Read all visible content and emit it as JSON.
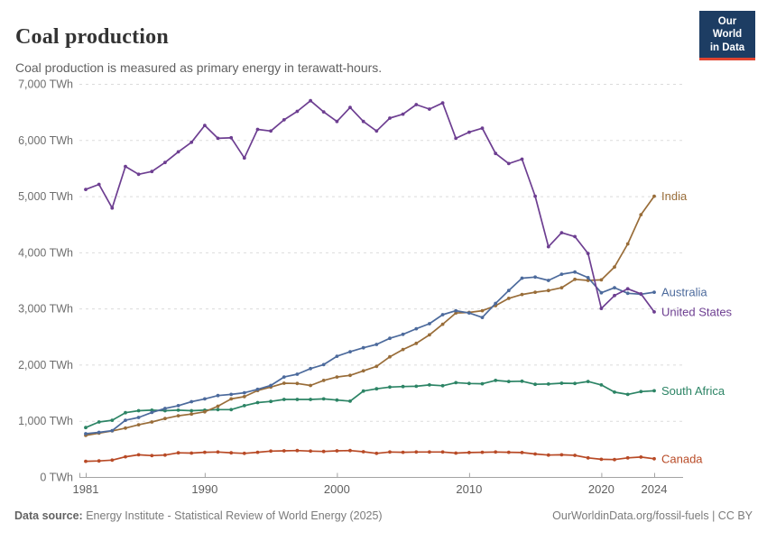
{
  "header": {
    "title": "Coal production",
    "subtitle": "Coal production is measured as primary energy in terawatt-hours."
  },
  "logo": {
    "line1": "Our World",
    "line2": "in Data"
  },
  "footer": {
    "source_label": "Data source:",
    "source_text": " Energy Institute - Statistical Review of World Energy (2025)",
    "url": "OurWorldinData.org/fossil-fuels",
    "separator": " | ",
    "license": "CC BY"
  },
  "colors": {
    "background": "#FFFFFF",
    "title": "#333333",
    "subtitle": "#616161",
    "gridline": "#DBDBDB",
    "axis": "#A3A3A3",
    "y_tick_label": "#6E6E6E",
    "x_tick_label": "#5F5F5F",
    "footer_text": "#7B7B7B",
    "logo_bg": "#1D3D63",
    "logo_accent": "#E04430"
  },
  "chart_data": {
    "type": "line",
    "title": "Coal production",
    "unit": "TWh",
    "ylabel": "",
    "xlabel": "",
    "ylim": [
      0,
      7000
    ],
    "y_ticks": [
      0,
      1000,
      2000,
      3000,
      4000,
      5000,
      6000,
      7000
    ],
    "x_ticks": [
      1981,
      1990,
      2000,
      2010,
      2020,
      2024
    ],
    "grid": true,
    "legend_position": "right-end-labels",
    "x": [
      1981,
      1982,
      1983,
      1984,
      1985,
      1986,
      1987,
      1988,
      1989,
      1990,
      1991,
      1992,
      1993,
      1994,
      1995,
      1996,
      1997,
      1998,
      1999,
      2000,
      2001,
      2002,
      2003,
      2004,
      2005,
      2006,
      2007,
      2008,
      2009,
      2010,
      2011,
      2012,
      2013,
      2014,
      2015,
      2016,
      2017,
      2018,
      2019,
      2020,
      2021,
      2022,
      2023,
      2024
    ],
    "series": [
      {
        "name": "India",
        "color": "#996D39",
        "values": [
          740,
          780,
          820,
          870,
          930,
          980,
          1040,
          1090,
          1120,
          1160,
          1260,
          1390,
          1430,
          1540,
          1600,
          1670,
          1665,
          1630,
          1720,
          1780,
          1810,
          1890,
          1970,
          2140,
          2270,
          2380,
          2530,
          2720,
          2920,
          2930,
          2960,
          3050,
          3180,
          3250,
          3290,
          3320,
          3370,
          3520,
          3500,
          3510,
          3740,
          4150,
          4670,
          5000
        ]
      },
      {
        "name": "Australia",
        "color": "#4C6A9C",
        "values": [
          770,
          795,
          825,
          1010,
          1060,
          1150,
          1220,
          1270,
          1340,
          1390,
          1450,
          1470,
          1500,
          1560,
          1630,
          1780,
          1830,
          1930,
          2000,
          2150,
          2230,
          2300,
          2360,
          2470,
          2540,
          2640,
          2730,
          2890,
          2960,
          2920,
          2840,
          3090,
          3320,
          3540,
          3560,
          3500,
          3610,
          3650,
          3550,
          3280,
          3370,
          3270,
          3255,
          3290
        ]
      },
      {
        "name": "United States",
        "color": "#6D3E91",
        "values": [
          5120,
          5210,
          4790,
          5530,
          5390,
          5440,
          5600,
          5790,
          5960,
          6260,
          6030,
          6040,
          5680,
          6190,
          6160,
          6360,
          6510,
          6700,
          6500,
          6330,
          6580,
          6330,
          6160,
          6390,
          6460,
          6630,
          6550,
          6660,
          6030,
          6140,
          6210,
          5760,
          5580,
          5660,
          5000,
          4100,
          4350,
          4280,
          3980,
          3000,
          3230,
          3350,
          3260,
          2940
        ]
      },
      {
        "name": "South Africa",
        "color": "#2C8465",
        "values": [
          880,
          980,
          1010,
          1145,
          1180,
          1190,
          1180,
          1190,
          1180,
          1190,
          1200,
          1200,
          1270,
          1325,
          1345,
          1380,
          1380,
          1380,
          1390,
          1370,
          1350,
          1530,
          1570,
          1600,
          1610,
          1615,
          1640,
          1625,
          1680,
          1665,
          1660,
          1720,
          1700,
          1705,
          1650,
          1655,
          1670,
          1665,
          1700,
          1640,
          1510,
          1470,
          1520,
          1535
        ]
      },
      {
        "name": "Canada",
        "color": "#B84A26",
        "values": [
          280,
          285,
          300,
          360,
          395,
          380,
          390,
          430,
          425,
          440,
          445,
          430,
          420,
          440,
          460,
          465,
          470,
          460,
          455,
          465,
          470,
          450,
          420,
          445,
          440,
          445,
          445,
          445,
          425,
          435,
          440,
          445,
          440,
          435,
          410,
          390,
          395,
          385,
          340,
          315,
          310,
          340,
          355,
          325
        ]
      }
    ]
  }
}
